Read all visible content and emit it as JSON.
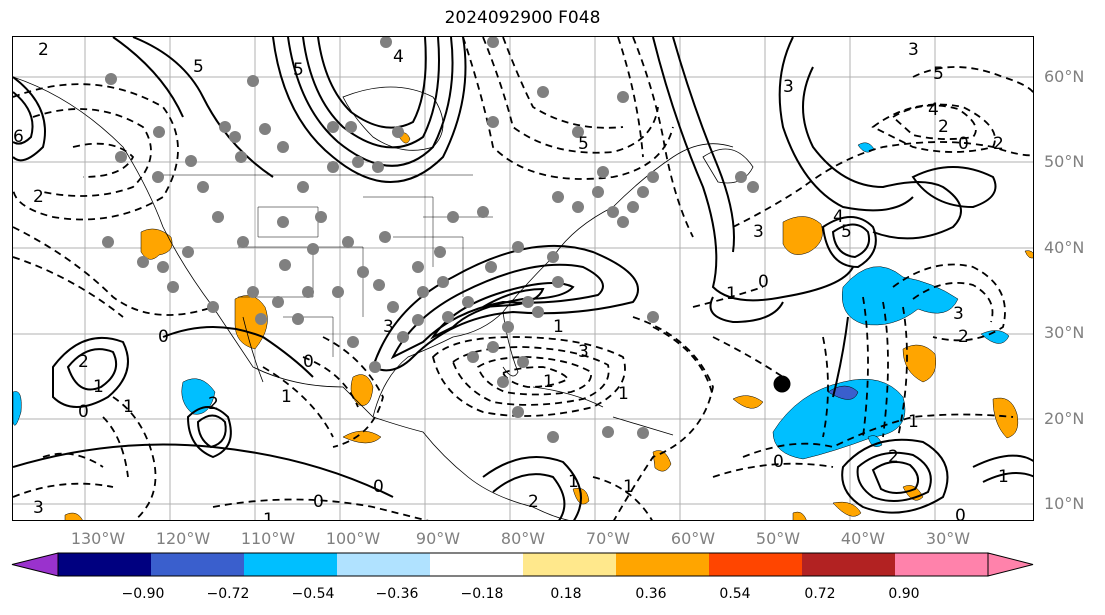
{
  "title": "2024092900 F048",
  "map": {
    "lat_labels": [
      "60°N",
      "50°N",
      "40°N",
      "30°N",
      "20°N",
      "10°N"
    ],
    "lon_labels": [
      "130°W",
      "120°W",
      "110°W",
      "100°W",
      "90°W",
      "80°W",
      "70°W",
      "60°W",
      "50°W",
      "40°W",
      "30°W"
    ],
    "contour_labels": [
      "2",
      "5",
      "5",
      "4",
      "6",
      "2",
      "3",
      "3",
      "4",
      "5",
      "5",
      "0",
      "2",
      "2",
      "3",
      "0",
      "1",
      "0",
      "4",
      "3",
      "2",
      "1",
      "0",
      "5",
      "1",
      "3",
      "1",
      "2",
      "1",
      "0",
      "1",
      "0",
      "1",
      "2",
      "3",
      "1",
      "1",
      "2",
      "1",
      "0",
      "0",
      "1",
      "2",
      "0",
      "1",
      "3"
    ],
    "marker": "storm-center-dot"
  },
  "colorbar": {
    "ticks": [
      "−0.90",
      "−0.72",
      "−0.54",
      "−0.36",
      "−0.18",
      "0.18",
      "0.36",
      "0.54",
      "0.72",
      "0.90"
    ],
    "colors": [
      "#9a32cd",
      "#000080",
      "#3a5fcd",
      "#00bfff",
      "#b0e2ff",
      "#ffffff",
      "#ffe88c",
      "#ffa500",
      "#ff4500",
      "#b22222",
      "#ff82ab",
      "#ff82ab"
    ],
    "extend": "both"
  }
}
